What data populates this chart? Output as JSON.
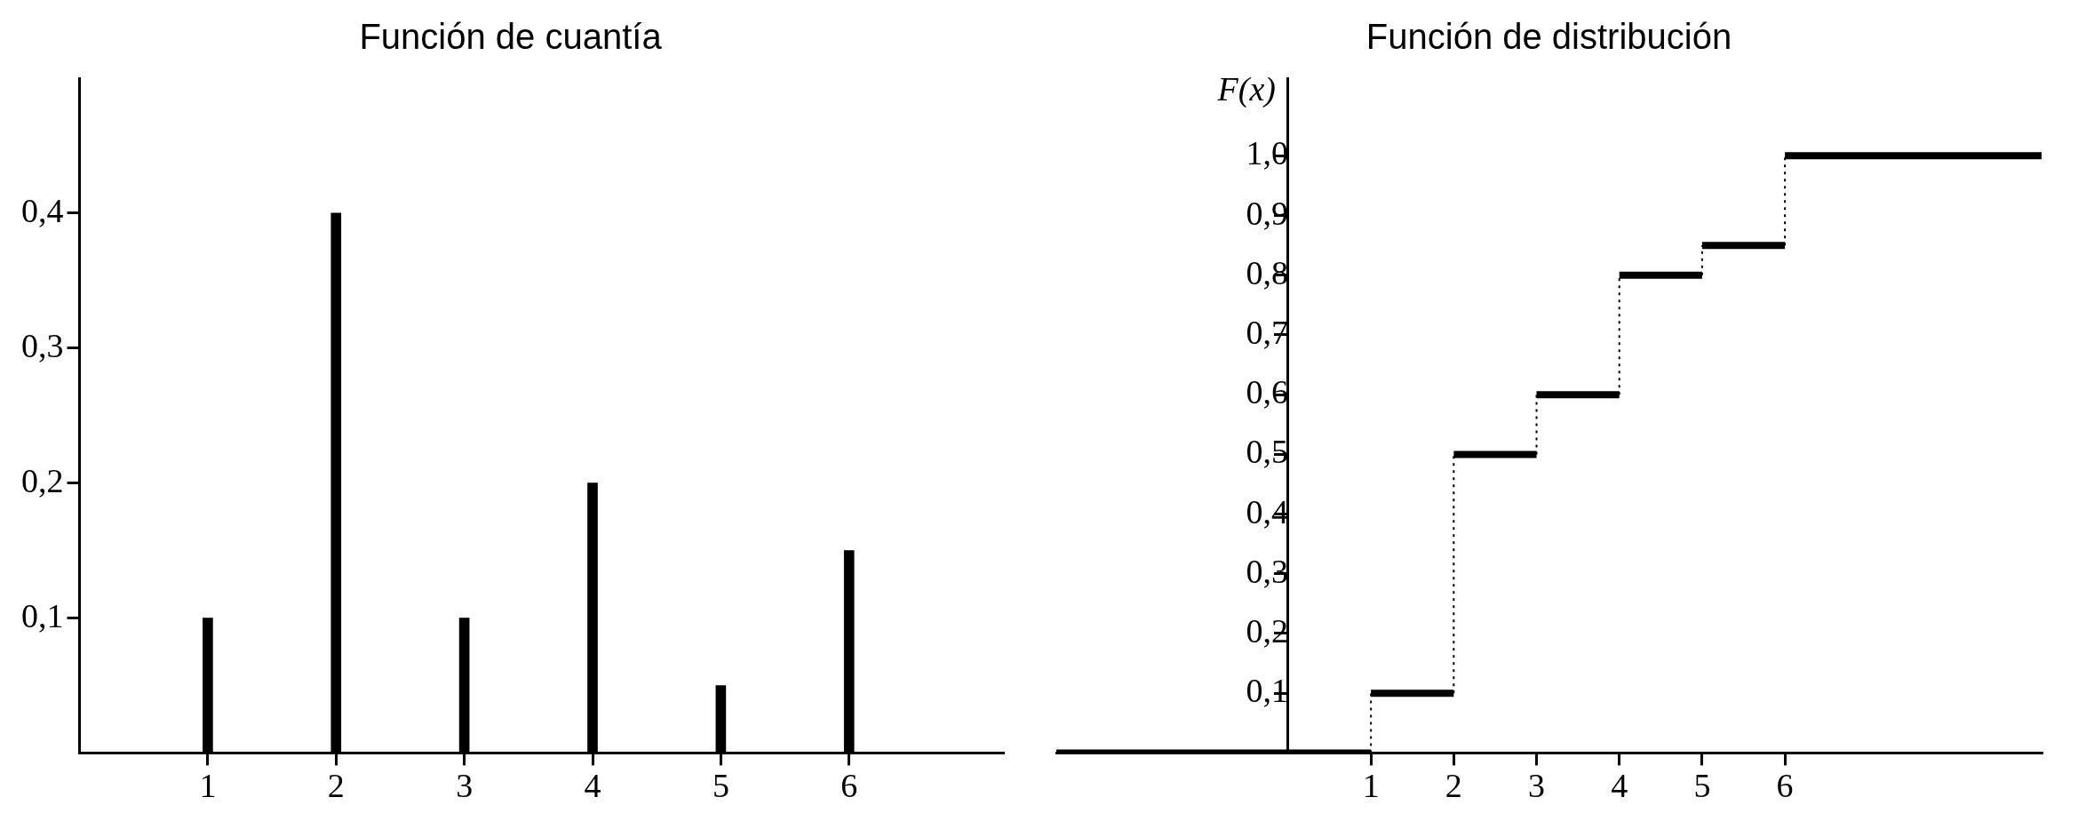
{
  "chart_data": [
    {
      "type": "bar",
      "title": "Función de cuantía",
      "x": [
        1,
        2,
        3,
        4,
        5,
        6
      ],
      "values": [
        0.1,
        0.4,
        0.1,
        0.2,
        0.05,
        0.15
      ],
      "color": "#000000",
      "xlim": [
        0,
        7.2
      ],
      "xticks": [
        1,
        2,
        3,
        4,
        5,
        6
      ],
      "ylim": [
        0,
        0.5
      ],
      "yticks": [
        {
          "value": 0.1,
          "label": "0,1"
        },
        {
          "value": 0.2,
          "label": "0,2"
        },
        {
          "value": 0.3,
          "label": "0,3"
        },
        {
          "value": 0.4,
          "label": "0,4"
        }
      ],
      "grid": false,
      "legend": false
    },
    {
      "type": "step",
      "title": "Función de distribución",
      "ylabel": "F(x)",
      "x": [
        -2.8,
        1,
        2,
        3,
        4,
        5,
        6,
        9.1
      ],
      "values": [
        0,
        0.1,
        0.5,
        0.6,
        0.8,
        0.85,
        1.0,
        1.0
      ],
      "color": "#000000",
      "xlim": [
        -2.8,
        9.1
      ],
      "xticks": [
        1,
        2,
        3,
        4,
        5,
        6
      ],
      "ylim": [
        0,
        1.13
      ],
      "yticks": [
        {
          "value": 0.1,
          "label": "0,1"
        },
        {
          "value": 0.2,
          "label": "0,2"
        },
        {
          "value": 0.3,
          "label": "0,3"
        },
        {
          "value": 0.4,
          "label": "0,4"
        },
        {
          "value": 0.5,
          "label": "0,5"
        },
        {
          "value": 0.6,
          "label": "0,6"
        },
        {
          "value": 0.7,
          "label": "0,7"
        },
        {
          "value": 0.8,
          "label": "0,8"
        },
        {
          "value": 0.9,
          "label": "0,9"
        },
        {
          "value": 1.0,
          "label": "1,0"
        }
      ],
      "grid": false,
      "legend": false
    }
  ]
}
